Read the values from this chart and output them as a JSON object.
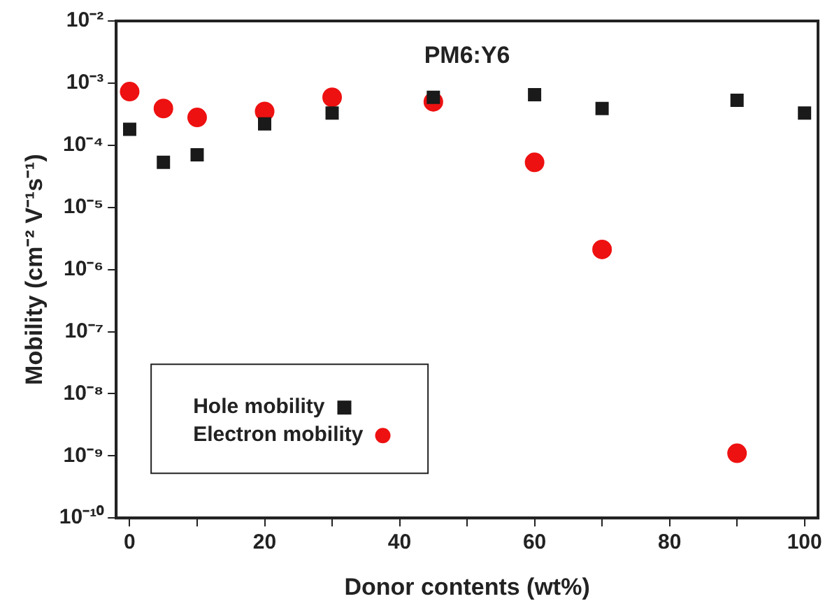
{
  "chart_data": {
    "type": "scatter",
    "title": "PM6:Y6",
    "xlabel": "Donor contents (wt%)",
    "ylabel": "Mobility (cm⁻² V⁻¹s⁻¹)",
    "log": "y",
    "grid": false,
    "legend": "bottom left",
    "xlim": [
      -2,
      102
    ],
    "xticks": [
      0,
      {
        "value": 10,
        "label": null
      },
      20,
      {
        "value": 30,
        "label": null
      },
      40,
      {
        "value": 50,
        "label": null
      },
      60,
      {
        "value": 70,
        "label": null
      },
      80,
      {
        "value": 90,
        "label": null
      },
      100
    ],
    "ylim": [
      1e-10,
      0.01
    ],
    "yticks": [
      {
        "value": 1e-10,
        "label": "10⁻¹⁰"
      },
      {
        "value": 1e-09,
        "label": "10⁻⁹"
      },
      {
        "value": 1e-08,
        "label": "10⁻⁸"
      },
      {
        "value": 1e-07,
        "label": "10⁻⁷"
      },
      {
        "value": 1e-06,
        "label": "10⁻⁶"
      },
      {
        "value": 1e-05,
        "label": "10⁻⁵"
      },
      {
        "value": 0.0001,
        "label": "10⁻⁴"
      },
      {
        "value": 0.001,
        "label": "10⁻³"
      },
      {
        "value": 0.01,
        "label": "10⁻²"
      }
    ],
    "series": [
      {
        "name": "Hole mobility",
        "color": "#1a1a1a",
        "marker": "square",
        "x": [
          0,
          5,
          10,
          20,
          30,
          45,
          60,
          70,
          90,
          100
        ],
        "values": [
          0.00018,
          5.3e-05,
          7e-05,
          0.00022,
          0.00033,
          0.00059,
          0.00065,
          0.00039,
          0.00053,
          0.00033
        ]
      },
      {
        "name": "Electron mobility",
        "color": "#ee1111",
        "marker": "circle",
        "x": [
          0,
          5,
          10,
          20,
          30,
          45,
          60,
          70,
          90
        ],
        "values": [
          0.00073,
          0.00039,
          0.00028,
          0.00035,
          0.00059,
          0.0005,
          5.3e-05,
          2.1e-06,
          1.1e-09
        ]
      }
    ]
  }
}
